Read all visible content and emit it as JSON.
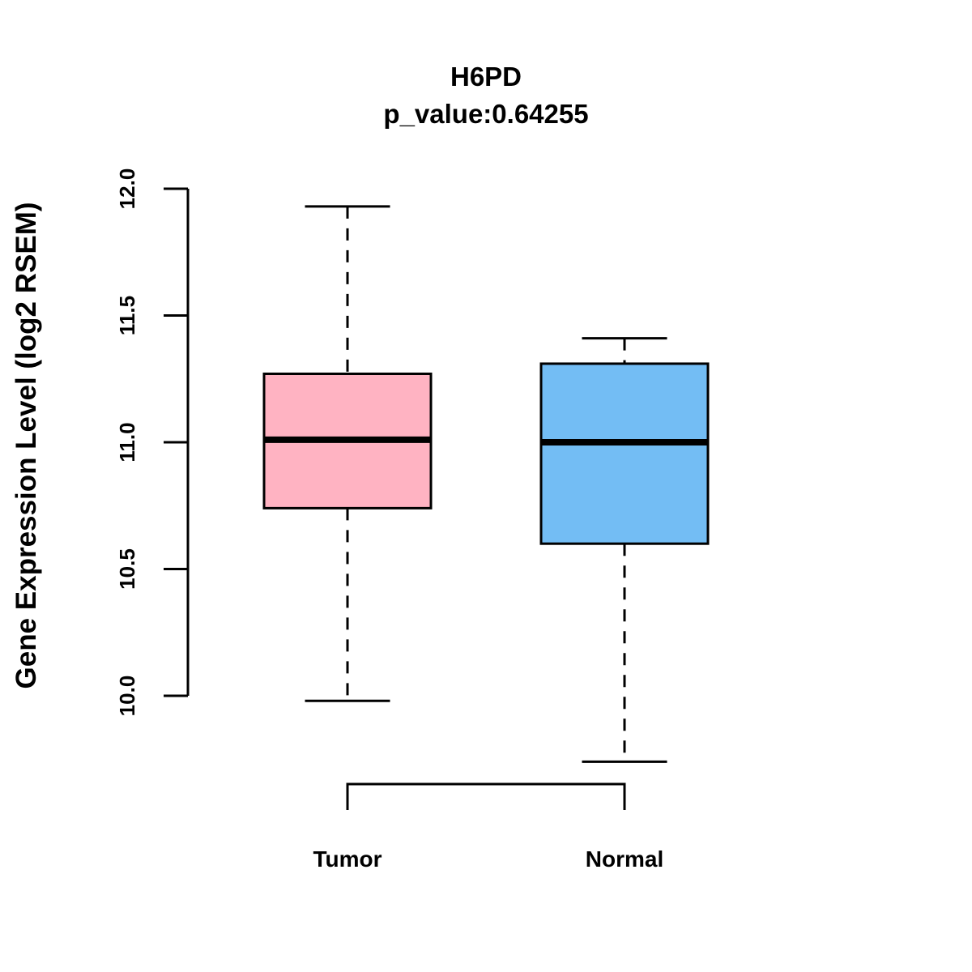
{
  "chart_data": {
    "type": "boxplot",
    "title": "H6PD",
    "subtitle": "p_value:0.64255",
    "ylabel": "Gene Expression Level (log2 RSEM)",
    "y_axis": {
      "min": 10.0,
      "max": 12.0,
      "ticks": [
        12.0,
        11.5,
        11.0,
        10.5,
        10.0
      ],
      "tick_labels": [
        "12.0",
        "11.5",
        "11.0",
        "10.5",
        "10.0"
      ],
      "grid": false
    },
    "categories": [
      "Tumor",
      "Normal"
    ],
    "groups": [
      {
        "label": "Tumor",
        "color": "#ffb3c2",
        "whisker_low": 9.98,
        "q1": 10.74,
        "median": 11.01,
        "q3": 11.27,
        "whisker_high": 11.93
      },
      {
        "label": "Normal",
        "color": "#73bdf4",
        "whisker_low": 9.74,
        "q1": 10.6,
        "median": 11.0,
        "q3": 11.31,
        "whisker_high": 11.41
      }
    ],
    "annotations": {
      "comparison_bracket_between": [
        "Tumor",
        "Normal"
      ]
    },
    "legend": "none"
  }
}
